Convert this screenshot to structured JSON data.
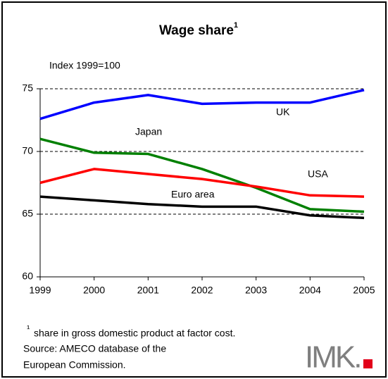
{
  "chart_data": {
    "type": "line",
    "title": "Wage share",
    "title_superscript": "1",
    "subtitle": "Index 1999=100",
    "x": [
      1999,
      2000,
      2001,
      2002,
      2003,
      2004,
      2005
    ],
    "xlim": [
      1999,
      2005
    ],
    "xticks": [
      1999,
      2000,
      2001,
      2002,
      2003,
      2004,
      2005
    ],
    "ylim": [
      60,
      75
    ],
    "yticks": [
      60,
      65,
      70,
      75
    ],
    "grid": true,
    "series": [
      {
        "name": "UK",
        "color": "#0000ff",
        "values": [
          72.6,
          73.9,
          74.5,
          73.8,
          73.9,
          73.9,
          74.9
        ]
      },
      {
        "name": "Japan",
        "color": "#008000",
        "values": [
          71.0,
          69.9,
          69.8,
          68.6,
          67.1,
          65.4,
          65.2
        ]
      },
      {
        "name": "USA",
        "color": "#ff0000",
        "values": [
          67.5,
          68.6,
          68.2,
          67.8,
          67.2,
          66.5,
          66.4
        ]
      },
      {
        "name": "Euro area",
        "color": "#000000",
        "values": [
          66.4,
          66.1,
          65.8,
          65.6,
          65.6,
          64.9,
          64.7
        ]
      }
    ]
  },
  "footnote": {
    "mark": "¹",
    "text": "share in gross domestic product at factor cost.",
    "source_line1": "Source: AMECO database of the",
    "source_line2": "European Commission."
  },
  "logo": "IMK."
}
